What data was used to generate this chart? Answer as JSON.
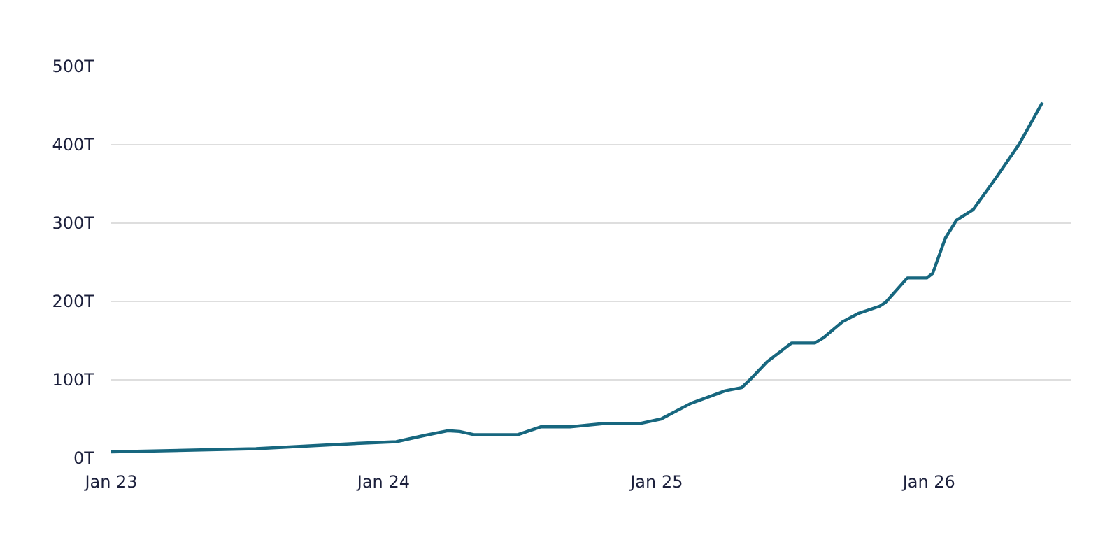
{
  "chart_data": {
    "type": "line",
    "x": [
      "2023-01-01",
      "2023-07-14",
      "2023-11-30",
      "2024-01-18",
      "2024-02-25",
      "2024-03-27",
      "2024-04-12",
      "2024-05-01",
      "2024-06-29",
      "2024-07-30",
      "2024-09-07",
      "2024-10-20",
      "2024-12-09",
      "2025-01-07",
      "2025-02-16",
      "2025-04-03",
      "2025-04-25",
      "2025-05-07",
      "2025-05-29",
      "2025-07-01",
      "2025-08-01",
      "2025-08-13",
      "2025-09-07",
      "2025-09-29",
      "2025-10-27",
      "2025-11-04",
      "2025-12-03",
      "2025-12-29",
      "2026-01-06",
      "2026-01-23",
      "2026-02-07",
      "2026-03-01",
      "2026-04-01",
      "2026-05-02",
      "2026-06-02"
    ],
    "series": [
      {
        "color": "#17677f",
        "values": [
          8,
          12,
          19,
          21,
          29,
          35,
          34,
          30,
          30,
          40,
          40,
          44,
          44,
          50,
          70,
          86,
          90,
          101,
          123,
          147,
          147,
          154,
          174,
          185,
          194,
          199,
          230,
          230,
          236,
          281,
          304,
          317,
          358,
          401,
          454
        ]
      }
    ],
    "xlim": [
      "2023-01-01",
      "2026-07-10"
    ],
    "xticks": [
      {
        "value": "2023-01-01",
        "label": "Jan 23"
      },
      {
        "value": "2024-01-01",
        "label": "Jan 24"
      },
      {
        "value": "2025-01-01",
        "label": "Jan 25"
      },
      {
        "value": "2026-01-01",
        "label": "Jan 26"
      }
    ],
    "ylim": [
      0,
      500
    ],
    "yticks": [
      {
        "value": 0,
        "label": "0T"
      },
      {
        "value": 100,
        "label": "100T"
      },
      {
        "value": 200,
        "label": "200T"
      },
      {
        "value": 300,
        "label": "300T"
      },
      {
        "value": 400,
        "label": "400T"
      },
      {
        "value": 500,
        "label": "500T"
      }
    ],
    "grid": "y",
    "line_style": "solid"
  }
}
